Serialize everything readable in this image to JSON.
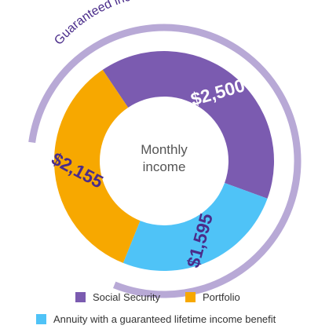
{
  "chart_data": {
    "type": "pie",
    "variant": "donut",
    "center_label": [
      "Monthly",
      "income"
    ],
    "arc_label": "Guaranteed income",
    "slices": [
      {
        "name": "Social Security",
        "value": 2500,
        "label": "$2,500",
        "color": "#7b5bb0"
      },
      {
        "name": "Annuity with a guaranteed lifetime income benefit",
        "value": 1595,
        "label": "$1,595",
        "color": "#4fc3f7"
      },
      {
        "name": "Portfolio",
        "value": 2155,
        "label": "$2,155",
        "color": "#f7a800"
      }
    ],
    "label_colors": {
      "Social Security": "#ffffff",
      "Annuity with a guaranteed lifetime income benefit": "#4a2c8a",
      "Portfolio": "#4a2c8a"
    },
    "arc_color": "#b8a9d6",
    "arc_text_color": "#4a2c8a",
    "legend": [
      {
        "label": "Social Security",
        "color": "#7b5bb0"
      },
      {
        "label": "Portfolio",
        "color": "#f7a800"
      },
      {
        "label": "Annuity with a guaranteed lifetime income benefit",
        "color": "#4fc3f7"
      }
    ]
  }
}
